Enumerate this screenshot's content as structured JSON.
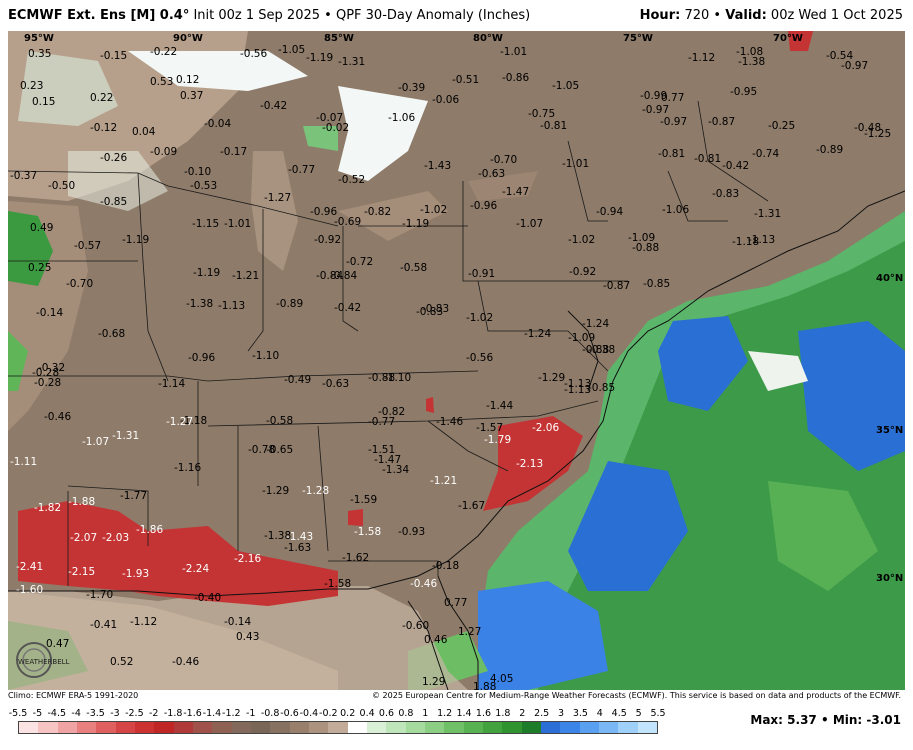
{
  "header": {
    "model_name": "ECMWF Ext. Ens [M] 0.4°",
    "init": "Init 00z 1 Sep 2025",
    "product": "QPF 30-Day Anomaly (Inches)",
    "hour_label": "Hour:",
    "hour_value": "720",
    "valid_label": "Valid:",
    "valid_value": "00z Wed 1 Oct 2025"
  },
  "footer": {
    "climo": "Climo: ECMWF ERA-5 1991-2020",
    "copyright": "© 2025 European Centre for Medium-Range Weather Forecasts (ECMWF). This service is based on data and products of the ECMWF."
  },
  "stats": {
    "max_label": "Max:",
    "max_value": "5.37",
    "min_label": "Min:",
    "min_value": "-3.01"
  },
  "logo_text": "WEATHERBELL",
  "legend": {
    "ticks": [
      "-5.5",
      "-5",
      "-4.5",
      "-4",
      "-3.5",
      "-3",
      "-2.5",
      "-2",
      "-1.8",
      "-1.6",
      "-1.4",
      "-1.2",
      "-1",
      "-0.8",
      "-0.6",
      "-0.4",
      "-0.2",
      "0.2",
      "0.4",
      "0.6",
      "0.8",
      "1",
      "1.2",
      "1.4",
      "1.6",
      "1.8",
      "2",
      "2.5",
      "3",
      "3.5",
      "4",
      "4.5",
      "5",
      "5.5"
    ],
    "colors": [
      "#fbe3e3",
      "#f7c4c4",
      "#f0a3a3",
      "#e98080",
      "#e06060",
      "#d64545",
      "#cd3232",
      "#c02626",
      "#b03a3a",
      "#a0524a",
      "#8f6152",
      "#82695c",
      "#7a6656",
      "#877160",
      "#98806c",
      "#ab937f",
      "#c2ab98",
      "#ffffff",
      "#d9f0d6",
      "#bfe5ba",
      "#a6db9f",
      "#8ccf84",
      "#70c068",
      "#58b252",
      "#42a33e",
      "#2f942f",
      "#1d7c2a",
      "#2a6ed6",
      "#3c85e8",
      "#5aa0f0",
      "#7ab8f5",
      "#9ed0fa",
      "#c2e4fd"
    ]
  },
  "map": {
    "lon_labels": [
      "95°W",
      "90°W",
      "85°W",
      "80°W",
      "75°W",
      "70°W"
    ],
    "lat_labels": [
      "40°N",
      "35°N",
      "30°N"
    ],
    "values": [
      "0.35",
      "-0.15",
      "-0.22",
      "-0.56",
      "-1.05",
      "-1.19",
      "-1.31",
      "-1.01",
      "-1.12",
      "-1.08",
      "-1.38",
      "-0.54",
      "-0.97",
      "0.23",
      "0.53",
      "0.12",
      "-0.39",
      "-0.51",
      "-0.86",
      "-1.05",
      "0.77",
      "-0.95",
      "0.15",
      "0.22",
      "0.37",
      "-0.42",
      "-0.07",
      "-0.02",
      "-1.06",
      "-0.06",
      "-0.75",
      "-0.99",
      "-0.97",
      "-0.97",
      "-0.87",
      "-0.25",
      "-0.12",
      "0.04",
      "-0.04",
      "-0.81",
      "-0.48",
      "-1.25",
      "-0.09",
      "-0.17",
      "-0.81",
      "-0.74",
      "-0.89",
      "-0.26",
      "-0.10",
      "-0.77",
      "-0.52",
      "-1.43",
      "-0.70",
      "-0.63",
      "-1.01",
      "-0.81",
      "-0.42",
      "-0.37",
      "-0.50",
      "-0.53",
      "-1.47",
      "-0.83",
      "-0.85",
      "-1.27",
      "-1.02",
      "-0.96",
      "-0.96",
      "-0.94",
      "-1.06",
      "-1.31",
      "0.49",
      "-1.15",
      "-1.01",
      "-0.82",
      "-0.69",
      "-1.19",
      "-1.07",
      "-1.02",
      "-1.18",
      "-1.13",
      "-0.57",
      "-1.19",
      "-0.92",
      "-0.88",
      "0.25",
      "-0.72",
      "-0.58",
      "-0.91",
      "-0.92",
      "-1.09",
      "-1.19",
      "-1.21",
      "-0.84",
      "-0.70",
      "-0.87",
      "-0.85",
      "-1.38",
      "-1.13",
      "-0.89",
      "-0.84",
      "-0.14",
      "-0.83",
      "-1.02",
      "-0.42",
      "-0.83",
      "-1.24",
      "-1.24",
      "-0.88",
      "-0.68",
      "-0.32",
      "-0.96",
      "-1.10",
      "-0.56",
      "-1.09",
      "-0.38",
      "-1.13",
      "-0.28",
      "-1.14",
      "-0.49",
      "-0.63",
      "-0.88",
      "-1.10",
      "-1.29",
      "-1.13",
      "-0.85",
      "-0.46",
      "-0.28",
      "-1.18",
      "-0.58",
      "-0.82",
      "-0.77",
      "-1.46",
      "-1.44",
      "-1.27",
      "-1.07",
      "-1.31",
      "-1.57",
      "-1.79",
      "-2.06",
      "-1.11",
      "-0.78",
      "-0.65",
      "-1.51",
      "-1.47",
      "-1.34",
      "-1.16",
      "-1.21",
      "-2.13",
      "-1.82",
      "-1.88",
      "-1.77",
      "-1.29",
      "-1.28",
      "-1.59",
      "-1.67",
      "-2.07",
      "-2.03",
      "-1.86",
      "-1.58",
      "-0.93",
      "-1.38",
      "-1.43",
      "-1.63",
      "-2.41",
      "-2.16",
      "-1.62",
      "-2.15",
      "-1.93",
      "-2.24",
      "-0.18",
      "-1.60",
      "-1.70",
      "-0.40",
      "-1.58",
      "-0.46",
      "0.77",
      "-1.12",
      "-0.41",
      "-0.14",
      "0.43",
      "-0.60",
      "1.27",
      "0.47",
      "0.46",
      "0.52",
      "-0.46",
      "1.29",
      "4.05",
      "1.88"
    ]
  }
}
